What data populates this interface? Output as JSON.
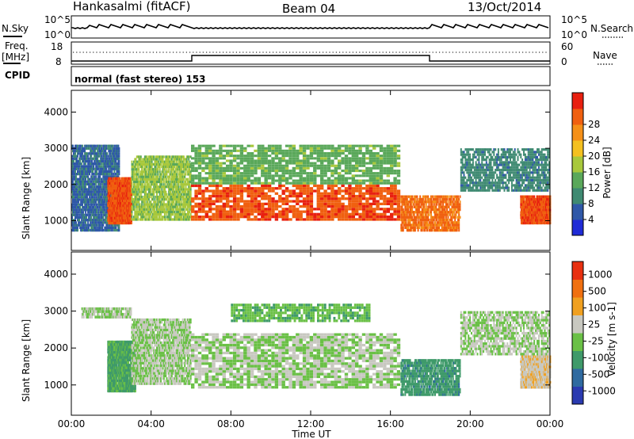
{
  "header": {
    "station": "Hankasalmi (fitACF)",
    "beam": "Beam 04",
    "date": "13/Oct/2014"
  },
  "summary_panels": {
    "noise": {
      "left_label": "N.Sky",
      "right_label": "N.Search",
      "left_ticks": [
        "10^5",
        "10^0"
      ],
      "right_ticks": [
        "10^5",
        "10^0"
      ]
    },
    "freq": {
      "left_label_1": "Freq.",
      "left_label_2": "[MHz]",
      "left_ticks": [
        "18",
        "8"
      ],
      "right_label": "Nave",
      "right_ticks": [
        "60",
        "0"
      ]
    },
    "cpid": {
      "left_label": "CPID",
      "mode_text": "normal (fast stereo) 153"
    }
  },
  "axes": {
    "xlabel": "Time UT",
    "ylabel_top": "Slant Range [km]",
    "ylabel_bottom": "Slant Range [km]",
    "x_ticks": [
      "00:00",
      "04:00",
      "08:00",
      "12:00",
      "16:00",
      "20:00",
      "00:00"
    ],
    "y_ticks": [
      "1000",
      "2000",
      "3000",
      "4000"
    ]
  },
  "colorbars": {
    "power": {
      "label": "Power [dB]",
      "ticks": [
        "4",
        "8",
        "12",
        "16",
        "20",
        "24",
        "28"
      ],
      "colors": [
        "#1f2bd6",
        "#2f58a8",
        "#3f8a72",
        "#5aa85a",
        "#a8c83c",
        "#f4c020",
        "#f59018",
        "#f06010",
        "#e82010"
      ]
    },
    "velocity": {
      "label": "Velocity [m s-1]",
      "ticks": [
        "1000",
        "500",
        "100",
        "25",
        "-25",
        "-100",
        "-500",
        "-1000"
      ],
      "colors": [
        "#2a3ab0",
        "#2f6aa0",
        "#3f9a6a",
        "#6ac046",
        "#c8c8c0",
        "#f0a020",
        "#f07010",
        "#e83010"
      ]
    }
  },
  "chart_data": [
    {
      "type": "heatmap",
      "title": "Power",
      "xlabel": "Time UT",
      "ylabel": "Slant Range [km]",
      "xlim": [
        0,
        24
      ],
      "ylim": [
        180,
        4600
      ],
      "zlabel": "Power [dB]",
      "zlim": [
        0,
        30
      ],
      "regions": [
        {
          "t0": 0.0,
          "t1": 2.4,
          "r0": 700,
          "r1": 3100,
          "value": 6
        },
        {
          "t0": 1.8,
          "t1": 3.0,
          "r0": 900,
          "r1": 2200,
          "value": 26
        },
        {
          "t0": 3.0,
          "t1": 6.0,
          "r0": 1000,
          "r1": 2800,
          "value": 14
        },
        {
          "t0": 6.0,
          "t1": 16.5,
          "r0": 1000,
          "r1": 2000,
          "value": 26
        },
        {
          "t0": 6.0,
          "t1": 16.5,
          "r0": 2000,
          "r1": 3100,
          "value": 12
        },
        {
          "t0": 16.5,
          "t1": 19.5,
          "r0": 700,
          "r1": 1700,
          "value": 24
        },
        {
          "t0": 19.5,
          "t1": 24.0,
          "r0": 1800,
          "r1": 3000,
          "value": 8
        },
        {
          "t0": 22.5,
          "t1": 24.0,
          "r0": 900,
          "r1": 1700,
          "value": 26
        }
      ]
    },
    {
      "type": "heatmap",
      "title": "Velocity",
      "xlabel": "Time UT",
      "ylabel": "Slant Range [km]",
      "xlim": [
        0,
        24
      ],
      "ylim": [
        180,
        4600
      ],
      "zlabel": "Velocity [m s-1]",
      "zlim": [
        -1000,
        1000
      ],
      "regions": [
        {
          "t0": 0.5,
          "t1": 3.0,
          "r0": 2800,
          "r1": 3100,
          "value": 0
        },
        {
          "t0": 1.8,
          "t1": 3.2,
          "r0": 800,
          "r1": 2200,
          "value": -300
        },
        {
          "t0": 3.0,
          "t1": 6.0,
          "r0": 1000,
          "r1": 2800,
          "value": 0
        },
        {
          "t0": 6.0,
          "t1": 16.5,
          "r0": 900,
          "r1": 2400,
          "value": 0
        },
        {
          "t0": 8.0,
          "t1": 15.0,
          "r0": 2700,
          "r1": 3200,
          "value": -200
        },
        {
          "t0": 16.5,
          "t1": 19.5,
          "r0": 700,
          "r1": 1700,
          "value": -400
        },
        {
          "t0": 19.5,
          "t1": 24.0,
          "r0": 1800,
          "r1": 3000,
          "value": 0
        },
        {
          "t0": 22.5,
          "t1": 24.0,
          "r0": 900,
          "r1": 1800,
          "value": 200
        }
      ]
    }
  ]
}
